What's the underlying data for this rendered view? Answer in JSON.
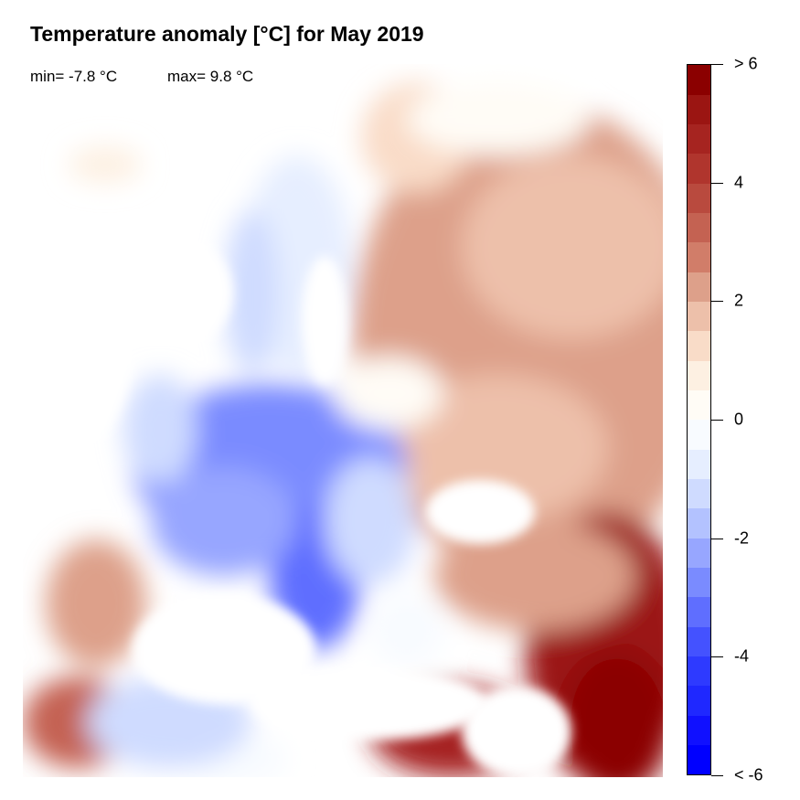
{
  "title": "Temperature anomaly [°C] for May 2019",
  "stats": {
    "min_label": "min= -7.8 °C",
    "max_label": "max= 9.8 °C"
  },
  "colorbar": {
    "range": [
      -6,
      6
    ],
    "step": 0.5,
    "colors": [
      "#0000ff",
      "#1010ff",
      "#1f28ff",
      "#2e3aff",
      "#4452ff",
      "#5f6eff",
      "#7a8bff",
      "#97a6ff",
      "#b3c2ff",
      "#cfdbff",
      "#e6eeff",
      "#f8fbff",
      "#fffcf6",
      "#fdf0e2",
      "#f9dcc8",
      "#edc0aa",
      "#dda08a",
      "#d17d69",
      "#c46252",
      "#b94a3e",
      "#b0352d",
      "#a62420",
      "#9b1512",
      "#8b0000"
    ],
    "ticks": [
      {
        "value": 6,
        "label": "> 6"
      },
      {
        "value": 4,
        "label": "4"
      },
      {
        "value": 2,
        "label": "2"
      },
      {
        "value": 0,
        "label": "0"
      },
      {
        "value": -2,
        "label": "-2"
      },
      {
        "value": -4,
        "label": "-4"
      },
      {
        "value": -6,
        "label": "< -6"
      }
    ]
  }
}
